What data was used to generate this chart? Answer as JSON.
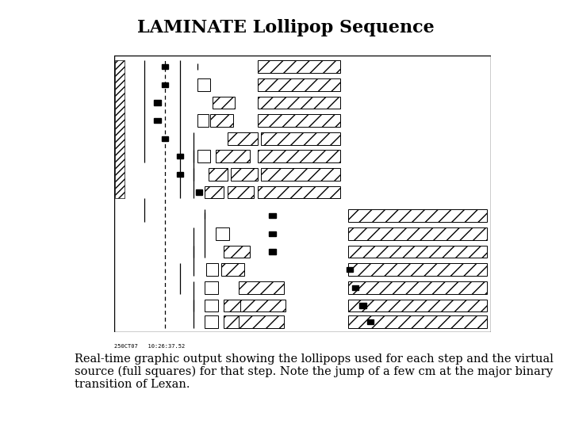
{
  "title": "LAMINATE Lollipop Sequence",
  "title_fontsize": 16,
  "caption": "Real-time graphic output showing the lollipops used for each step and the virtual\nsource (full squares) for that step. Note the jump of a few cm at the major binary\ntransition of Lexan.",
  "caption_fontsize": 10.5,
  "timestamp": "250CT07   10:26:37.52",
  "background_color": "#ffffff"
}
